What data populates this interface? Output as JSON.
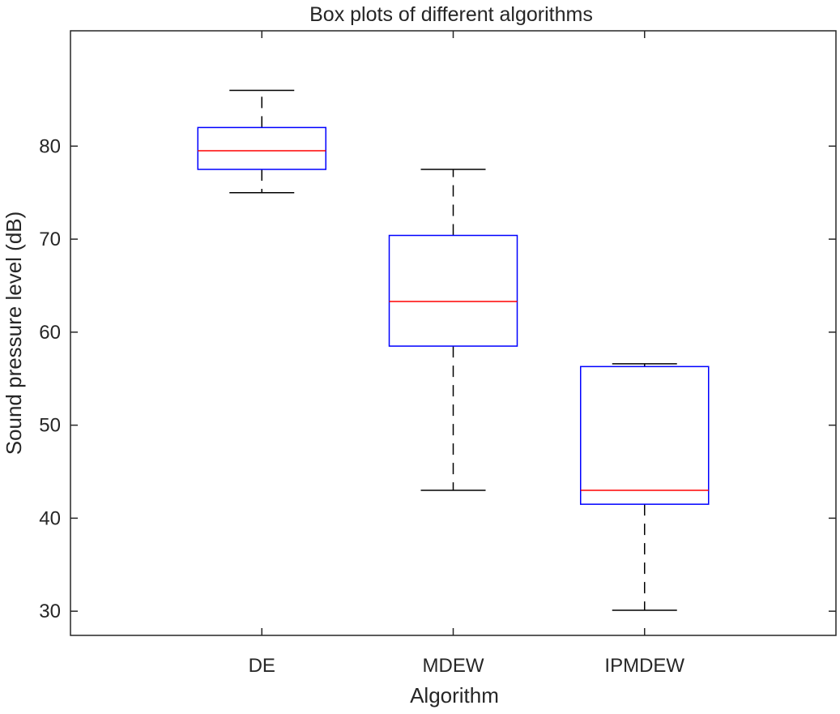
{
  "chart_data": {
    "type": "box",
    "title": "Box plots of different algorithms",
    "xlabel": "Algorithm",
    "ylabel": "Sound pressure level (dB)",
    "ylim": [
      27.4,
      92.4
    ],
    "yticks": [
      30,
      40,
      50,
      60,
      70,
      80
    ],
    "grid": false,
    "categories": [
      "DE",
      "MDEW",
      "IPMDEW"
    ],
    "boxes": [
      {
        "name": "DE",
        "whisker_low": 75.0,
        "q1": 77.5,
        "median": 79.5,
        "q3": 82.0,
        "whisker_high": 86.0
      },
      {
        "name": "MDEW",
        "whisker_low": 43.0,
        "q1": 58.5,
        "median": 63.3,
        "q3": 70.4,
        "whisker_high": 77.5
      },
      {
        "name": "IPMDEW",
        "whisker_low": 30.1,
        "q1": 41.5,
        "median": 43.0,
        "q3": 56.3,
        "whisker_high": 56.6
      }
    ],
    "colors": {
      "box": "#0000ff",
      "median": "#ff0000",
      "whisker": "#000000",
      "axes": "#262626"
    }
  }
}
